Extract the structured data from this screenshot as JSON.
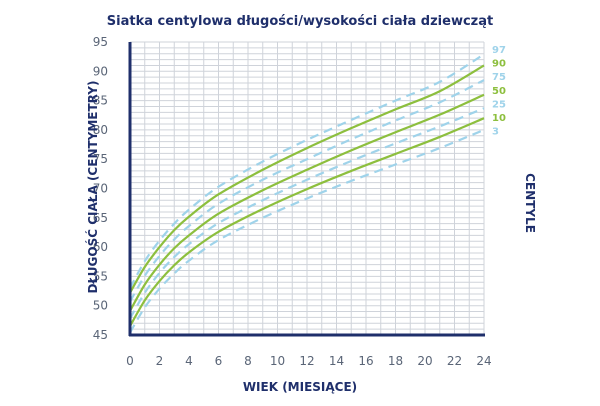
{
  "colors": {
    "title": "#1f2f6b",
    "axis": "#1f2f6b",
    "grid": "#cfd3da",
    "tick_text": "#5a6577",
    "solid_series": "#8dbf3e",
    "dashed_series": "#9fd3ea"
  },
  "chart_data": {
    "type": "line",
    "title": "Siatka centylowa długości/wysokości ciała dziewcząt",
    "xlabel": "WIEK (MIESIĄCE)",
    "ylabel": "DŁUGOŚĆ CIAŁA (CENTYMETRY)",
    "legend_title": "CENTYLE",
    "legend_position": "right",
    "grid": true,
    "xlim": [
      0,
      24
    ],
    "ylim": [
      45,
      95
    ],
    "x_ticks": [
      "0",
      "2",
      "4",
      "6",
      "8",
      "10",
      "12",
      "14",
      "16",
      "18",
      "20",
      "22",
      "24"
    ],
    "y_ticks": [
      "45",
      "50",
      "55",
      "60",
      "65",
      "70",
      "75",
      "80",
      "85",
      "90",
      "95"
    ],
    "x": [
      0,
      1,
      2,
      3,
      4,
      6,
      9,
      12,
      15,
      18,
      21,
      24
    ],
    "series": [
      {
        "name": "97",
        "style": "dashed",
        "values": [
          53.0,
          57.6,
          61.1,
          64.0,
          66.4,
          70.3,
          74.6,
          78.3,
          81.7,
          85.0,
          88.2,
          92.9
        ]
      },
      {
        "name": "90",
        "style": "solid",
        "values": [
          52.2,
          56.6,
          60.0,
          62.9,
          65.2,
          69.0,
          73.2,
          76.9,
          80.3,
          83.5,
          86.6,
          91.0
        ]
      },
      {
        "name": "75",
        "style": "dashed",
        "values": [
          50.7,
          55.1,
          58.5,
          61.3,
          63.6,
          67.4,
          71.5,
          75.0,
          78.4,
          81.6,
          84.7,
          88.5
        ]
      },
      {
        "name": "50",
        "style": "solid",
        "values": [
          49.1,
          53.6,
          57.0,
          59.8,
          62.0,
          65.7,
          69.7,
          73.2,
          76.5,
          79.6,
          82.6,
          86.0
        ]
      },
      {
        "name": "25",
        "style": "dashed",
        "values": [
          47.8,
          52.2,
          55.6,
          58.3,
          60.5,
          64.1,
          68.0,
          71.5,
          74.7,
          77.7,
          80.6,
          83.7
        ]
      },
      {
        "name": "10",
        "style": "solid",
        "values": [
          46.5,
          50.9,
          54.2,
          56.9,
          59.1,
          62.6,
          66.5,
          69.9,
          73.0,
          75.9,
          78.8,
          82.0
        ]
      },
      {
        "name": "3",
        "style": "dashed",
        "values": [
          45.4,
          49.7,
          52.9,
          55.5,
          57.7,
          61.2,
          65.0,
          68.3,
          71.3,
          74.1,
          76.9,
          80.0
        ]
      }
    ]
  }
}
